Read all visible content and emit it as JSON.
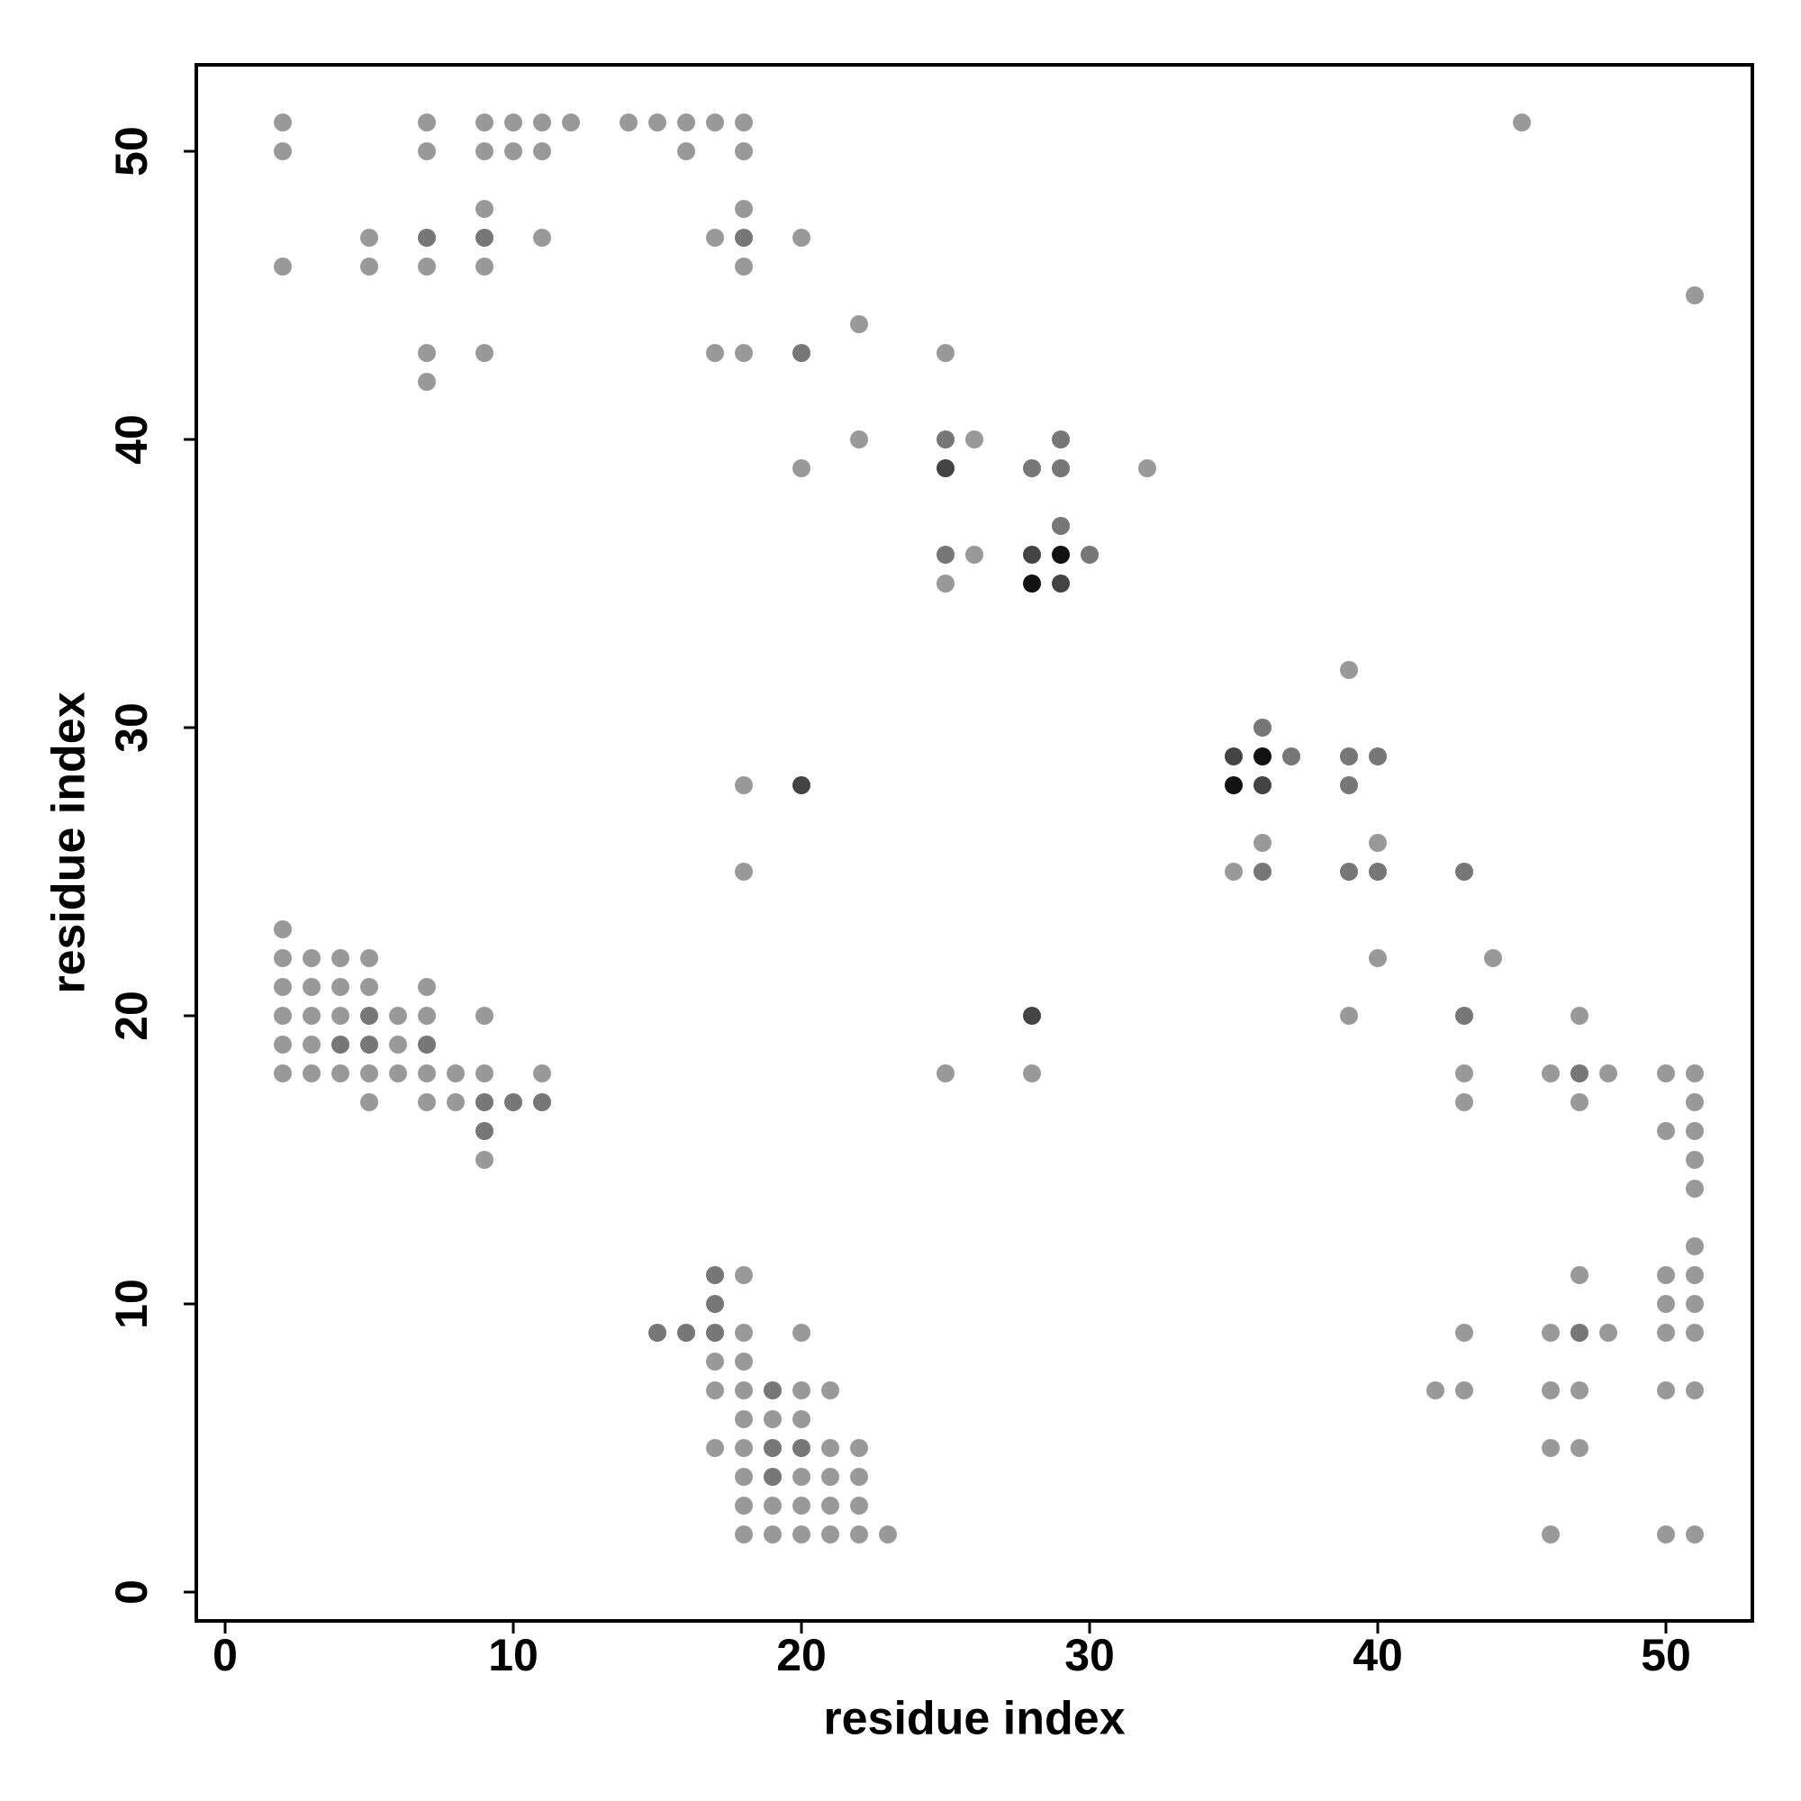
{
  "chart_data": {
    "type": "scatter",
    "x_label": "residue index",
    "y_label": "residue index",
    "xlim": [
      -1,
      53
    ],
    "ylim": [
      -1,
      53
    ],
    "xticks": [
      0,
      10,
      20,
      30,
      40,
      50
    ],
    "yticks": [
      0,
      10,
      20,
      30,
      40,
      50
    ],
    "series": [
      {
        "color": "#999999",
        "x": [
          2,
          7,
          9,
          10,
          11,
          12,
          14,
          15,
          16,
          17,
          18,
          45,
          2,
          7,
          9,
          10,
          11,
          16,
          18,
          9,
          18,
          5,
          11,
          17,
          20,
          2,
          5,
          7,
          9,
          18,
          51,
          22,
          7,
          9,
          17,
          18,
          25,
          7,
          22,
          26,
          20,
          32,
          26,
          25,
          39,
          18,
          36,
          40,
          18,
          35,
          2,
          2,
          3,
          4,
          5,
          40,
          44,
          2,
          3,
          4,
          5,
          7,
          2,
          3,
          4,
          6,
          7,
          9,
          39,
          47,
          2,
          3,
          6,
          2,
          3,
          4,
          5,
          6,
          7,
          8,
          9,
          11,
          25,
          28,
          43,
          46,
          48,
          50,
          51,
          5,
          7,
          8,
          43,
          47,
          51,
          50,
          51,
          9,
          51,
          51,
          51,
          18,
          47,
          50,
          51,
          50,
          51,
          18,
          20,
          43,
          46,
          48,
          50,
          51,
          17,
          18,
          17,
          18,
          20,
          21,
          42,
          43,
          46,
          47,
          50,
          51,
          18,
          19,
          20,
          17,
          18,
          21,
          22,
          46,
          47,
          18,
          20,
          21,
          22,
          18,
          19,
          20,
          21,
          22,
          18,
          19,
          20,
          21,
          22,
          23,
          46,
          50,
          51
        ],
        "y": [
          51,
          51,
          51,
          51,
          51,
          51,
          51,
          51,
          51,
          51,
          51,
          51,
          50,
          50,
          50,
          50,
          50,
          50,
          50,
          48,
          48,
          47,
          47,
          47,
          47,
          46,
          46,
          46,
          46,
          46,
          45,
          44,
          43,
          43,
          43,
          43,
          43,
          42,
          40,
          40,
          39,
          39,
          36,
          35,
          32,
          28,
          26,
          26,
          25,
          25,
          23,
          22,
          22,
          22,
          22,
          22,
          22,
          21,
          21,
          21,
          21,
          21,
          20,
          20,
          20,
          20,
          20,
          20,
          20,
          20,
          19,
          19,
          19,
          18,
          18,
          18,
          18,
          18,
          18,
          18,
          18,
          18,
          18,
          18,
          18,
          18,
          18,
          18,
          18,
          17,
          17,
          17,
          17,
          17,
          17,
          16,
          16,
          15,
          15,
          14,
          12,
          11,
          11,
          11,
          11,
          10,
          10,
          9,
          9,
          9,
          9,
          9,
          9,
          9,
          8,
          8,
          7,
          7,
          7,
          7,
          7,
          7,
          7,
          7,
          7,
          7,
          6,
          6,
          6,
          5,
          5,
          5,
          5,
          5,
          5,
          4,
          4,
          4,
          4,
          3,
          3,
          3,
          3,
          3,
          2,
          2,
          2,
          2,
          2,
          2,
          2,
          2,
          2
        ]
      },
      {
        "color": "#777777",
        "x": [
          7,
          9,
          18,
          20,
          25,
          29,
          28,
          29,
          29,
          25,
          30,
          36,
          37,
          39,
          40,
          39,
          36,
          39,
          40,
          43,
          5,
          43,
          4,
          5,
          7,
          47,
          9,
          10,
          11,
          9,
          17,
          17,
          15,
          16,
          17,
          47,
          19,
          19,
          20,
          19
        ],
        "y": [
          47,
          47,
          47,
          43,
          40,
          40,
          39,
          39,
          37,
          36,
          36,
          30,
          29,
          29,
          29,
          28,
          25,
          25,
          25,
          25,
          20,
          20,
          19,
          19,
          19,
          18,
          17,
          17,
          17,
          16,
          11,
          10,
          9,
          9,
          9,
          9,
          7,
          5,
          5,
          4
        ]
      },
      {
        "color": "#444444",
        "x": [
          25,
          28,
          29,
          35,
          20,
          36,
          28
        ],
        "y": [
          39,
          36,
          35,
          29,
          28,
          28,
          20
        ]
      },
      {
        "color": "#111111",
        "x": [
          29,
          28,
          36,
          35
        ],
        "y": [
          36,
          35,
          29,
          28
        ]
      }
    ]
  }
}
